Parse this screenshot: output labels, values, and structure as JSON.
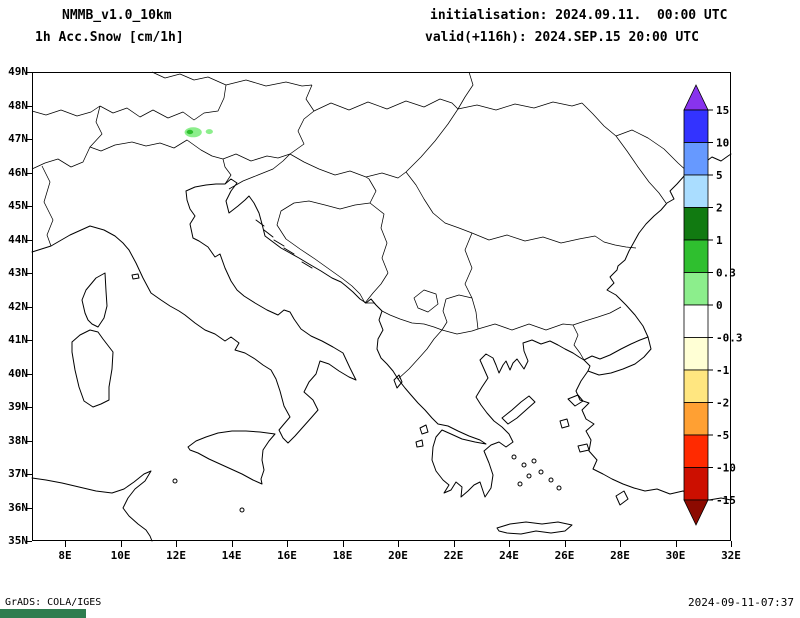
{
  "header": {
    "model": "NMMB_v1.0_10km",
    "variable": "1h Acc.Snow [cm/1h]",
    "init": "initialisation: 2024.09.11.  00:00 UTC",
    "valid": "valid(+116h): 2024.SEP.15 20:00 UTC"
  },
  "footer": {
    "left": "GrADS: COLA/IGES",
    "right": "2024-09-11-07:37",
    "logo_color": "#2e7d4f"
  },
  "chart_data": {
    "type": "heatmap",
    "title": "1h Acc.Snow [cm/1h]",
    "model": "NMMB_v1.0_10km",
    "init_time": "2024.09.11. 00:00 UTC",
    "valid_time": "2024.SEP.15 20:00 UTC (+116h)",
    "units": "cm/1h",
    "grid": false,
    "background": "#ffffff",
    "map_region": "approx 7E-32E, 35N-49N (Italy, Alps, Balkans, Greece, W Turkey, Black Sea)",
    "x_axis": {
      "label": "longitude",
      "range": [
        6.81,
        32.0
      ],
      "tick_values": [
        8,
        10,
        12,
        14,
        16,
        18,
        20,
        22,
        24,
        26,
        28,
        30,
        32
      ],
      "tick_labels": [
        "8E",
        "10E",
        "12E",
        "14E",
        "16E",
        "18E",
        "20E",
        "22E",
        "24E",
        "26E",
        "28E",
        "30E",
        "32E"
      ]
    },
    "y_axis": {
      "label": "latitude",
      "range": [
        35,
        49
      ],
      "tick_values": [
        49,
        48,
        47,
        46,
        45,
        44,
        43,
        42,
        41,
        40,
        39,
        38,
        37,
        36,
        35
      ],
      "tick_labels": [
        "49N",
        "48N",
        "47N",
        "46N",
        "45N",
        "44N",
        "43N",
        "42N",
        "41N",
        "40N",
        "39N",
        "38N",
        "37N",
        "36N",
        "35N"
      ]
    },
    "colorbar": {
      "position": "right",
      "levels": [
        15,
        10,
        5,
        2,
        1,
        0.3,
        0,
        -0.3,
        -1,
        -2,
        -5,
        -10,
        -15
      ],
      "labels": [
        "15",
        "10",
        "5",
        "2",
        "1",
        "0.3",
        "0",
        "-0.3",
        "-1",
        "-2",
        "-5",
        "-10",
        "-15"
      ],
      "colors": [
        "#8833ee",
        "#3333ff",
        "#6699ff",
        "#aaddff",
        "#117a11",
        "#2fbf2f",
        "#8cee8c",
        "#ffffff",
        "#ffffd5",
        "#ffe680",
        "#ffa033",
        "#ff2a00",
        "#cc0f00",
        "#8c0a00"
      ]
    },
    "snow_areas": [
      {
        "lon": 12.62,
        "lat": 47.2,
        "w_deg": 0.62,
        "h_deg": 0.3,
        "color": "#8cee8c",
        "value_range": "0-0.3 cm/1h",
        "desc": "snow patch over Tyrol Alps"
      },
      {
        "lon": 12.5,
        "lat": 47.21,
        "w_deg": 0.24,
        "h_deg": 0.13,
        "color": "#2fbf2f",
        "value_range": "0.3-1 cm/1h",
        "desc": "core of Alpine snow patch"
      },
      {
        "lon": 13.2,
        "lat": 47.22,
        "w_deg": 0.26,
        "h_deg": 0.15,
        "color": "#8cee8c",
        "value_range": "0-0.3 cm/1h",
        "desc": "small snow dot east of main patch"
      }
    ]
  }
}
